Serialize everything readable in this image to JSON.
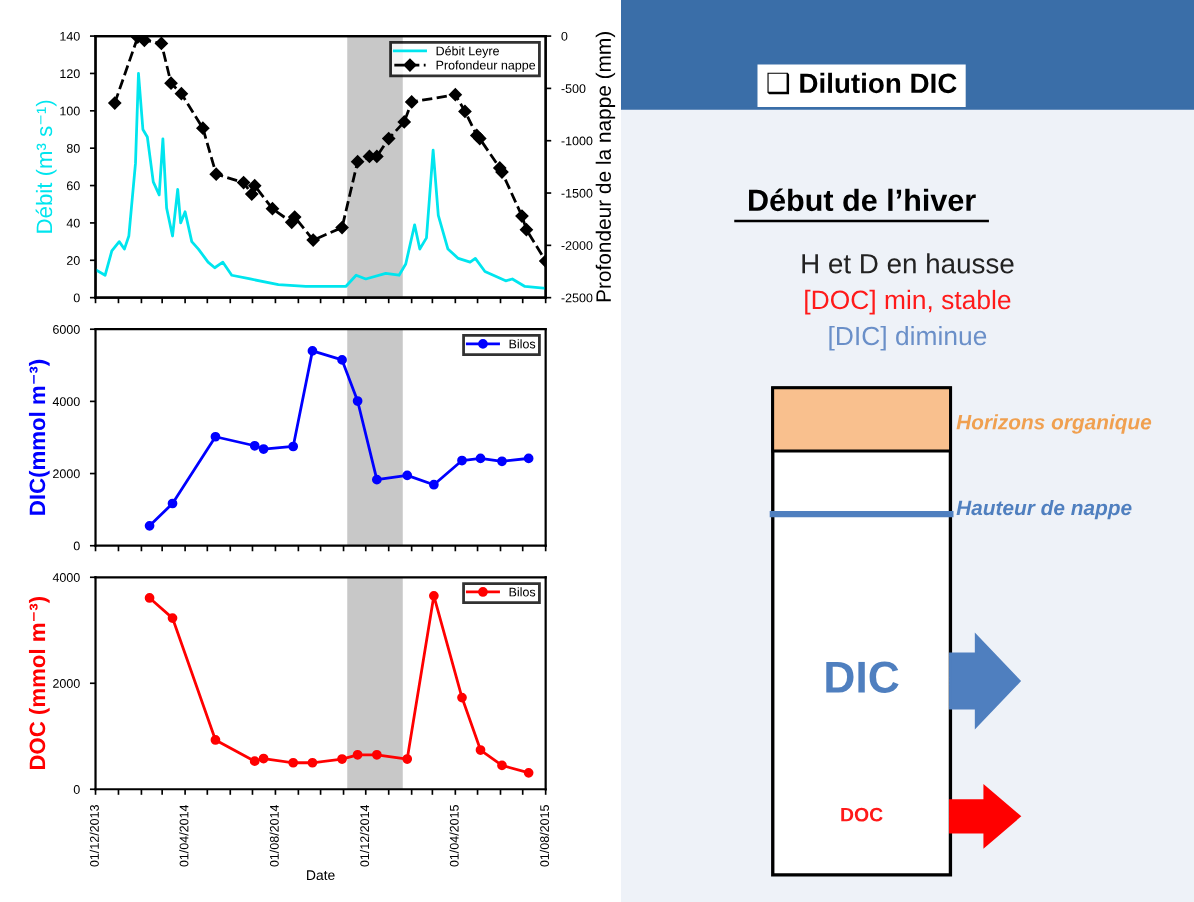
{
  "chart_data": [
    {
      "type": "line",
      "ylabel": "Débit (m³ s⁻¹)",
      "y2label": "Profondeur de la nappe (mm)",
      "xlim": [
        "2013-12-01",
        "2015-08-01"
      ],
      "xticks": [
        {
          "value": "2013-12-01",
          "label": null
        },
        {
          "value": "2014-01-01",
          "label": null
        },
        {
          "value": "2014-02-01",
          "label": null
        },
        {
          "value": "2014-03-01",
          "label": null
        },
        {
          "value": "2014-04-01",
          "label": null
        },
        {
          "value": "2014-05-01",
          "label": null
        },
        {
          "value": "2014-06-01",
          "label": null
        },
        {
          "value": "2014-07-01",
          "label": null
        },
        {
          "value": "2014-08-01",
          "label": null
        },
        {
          "value": "2014-09-01",
          "label": null
        },
        {
          "value": "2014-10-01",
          "label": null
        },
        {
          "value": "2014-11-01",
          "label": null
        },
        {
          "value": "2014-12-01",
          "label": null
        },
        {
          "value": "2015-01-01",
          "label": null
        },
        {
          "value": "2015-02-01",
          "label": null
        },
        {
          "value": "2015-03-01",
          "label": null
        },
        {
          "value": "2015-04-01",
          "label": null
        },
        {
          "value": "2015-05-01",
          "label": null
        },
        {
          "value": "2015-06-01",
          "label": null
        },
        {
          "value": "2015-07-01",
          "label": null
        },
        {
          "value": "2015-08-01",
          "label": null
        }
      ],
      "ylim": [
        0,
        140
      ],
      "yticks": [
        0,
        20,
        40,
        60,
        80,
        100,
        120,
        140
      ],
      "y2lim": [
        -2500,
        0
      ],
      "y2ticks": [
        -2500,
        -2000,
        -1500,
        -1000,
        -500,
        0
      ],
      "tick_labels": "y",
      "legend": "top right",
      "grid": false,
      "bands": [
        {
          "axis": "x",
          "from": "2014-11-06",
          "to": "2015-01-20",
          "color": "#c8c8c8"
        }
      ],
      "series": [
        {
          "name": "Débit Leyre",
          "color": "#00e5ee",
          "x": [
            "2013-12-01",
            "2013-12-14",
            "2013-12-23",
            "2014-01-02",
            "2014-01-09",
            "2014-01-15",
            "2014-01-24",
            "2014-01-28",
            "2014-02-03",
            "2014-02-09",
            "2014-02-17",
            "2014-02-25",
            "2014-03-02",
            "2014-03-07",
            "2014-03-15",
            "2014-03-22",
            "2014-03-26",
            "2014-04-01",
            "2014-04-10",
            "2014-04-19",
            "2014-05-02",
            "2014-05-11",
            "2014-05-22",
            "2014-06-03",
            "2014-06-28",
            "2014-08-05",
            "2014-09-11",
            "2014-11-04",
            "2014-11-18",
            "2014-12-01",
            "2014-12-28",
            "2015-01-15",
            "2015-01-24",
            "2015-02-05",
            "2015-02-12",
            "2015-02-21",
            "2015-03-02",
            "2015-03-09",
            "2015-03-22",
            "2015-04-05",
            "2015-04-21",
            "2015-04-28",
            "2015-05-11",
            "2015-06-08",
            "2015-06-17",
            "2015-07-04",
            "2015-08-01"
          ],
          "values": [
            15,
            12,
            25,
            30,
            26,
            33,
            72,
            120,
            90,
            86,
            62,
            55,
            85,
            48,
            33,
            58,
            40,
            46,
            30,
            26,
            19,
            16,
            19,
            12,
            10,
            7,
            6,
            6,
            12,
            10,
            13,
            12,
            18,
            39,
            26,
            32,
            79,
            44,
            26,
            21,
            19,
            21,
            14,
            9,
            10,
            6,
            5
          ]
        },
        {
          "name": "Profondeur nappe",
          "color": "#000000",
          "axis": "y2",
          "marker": "diamond",
          "line_style": "dashed",
          "x": [
            "2013-12-27",
            "2014-01-27",
            "2014-02-05",
            "2014-02-28",
            "2014-03-13",
            "2014-03-27",
            "2014-04-25",
            "2014-05-13",
            "2014-06-19",
            "2014-06-30",
            "2014-07-04",
            "2014-07-28",
            "2014-08-23",
            "2014-08-27",
            "2014-09-21",
            "2014-10-30",
            "2014-11-20",
            "2014-12-06",
            "2014-12-16",
            "2015-01-01",
            "2015-01-22",
            "2015-02-01",
            "2015-04-01",
            "2015-04-14",
            "2015-04-30",
            "2015-05-04",
            "2015-05-31",
            "2015-06-03",
            "2015-06-30",
            "2015-07-06",
            "2015-08-01"
          ],
          "values": [
            -640,
            -10,
            -40,
            -70,
            -450,
            -550,
            -880,
            -1320,
            -1400,
            -1510,
            -1430,
            -1650,
            -1780,
            -1730,
            -1950,
            -1830,
            -1200,
            -1150,
            -1150,
            -980,
            -820,
            -630,
            -560,
            -720,
            -950,
            -980,
            -1260,
            -1300,
            -1720,
            -1850,
            -2150
          ]
        }
      ]
    },
    {
      "type": "line",
      "ylabel": "DIC(mmol m⁻³)",
      "xlim": [
        "2013-12-01",
        "2015-08-01"
      ],
      "xticks": [
        {
          "value": "2013-12-01",
          "label": null
        },
        {
          "value": "2014-01-01",
          "label": null
        },
        {
          "value": "2014-02-01",
          "label": null
        },
        {
          "value": "2014-03-01",
          "label": null
        },
        {
          "value": "2014-04-01",
          "label": null
        },
        {
          "value": "2014-05-01",
          "label": null
        },
        {
          "value": "2014-06-01",
          "label": null
        },
        {
          "value": "2014-07-01",
          "label": null
        },
        {
          "value": "2014-08-01",
          "label": null
        },
        {
          "value": "2014-09-01",
          "label": null
        },
        {
          "value": "2014-10-01",
          "label": null
        },
        {
          "value": "2014-11-01",
          "label": null
        },
        {
          "value": "2014-12-01",
          "label": null
        },
        {
          "value": "2015-01-01",
          "label": null
        },
        {
          "value": "2015-02-01",
          "label": null
        },
        {
          "value": "2015-03-01",
          "label": null
        },
        {
          "value": "2015-04-01",
          "label": null
        },
        {
          "value": "2015-05-01",
          "label": null
        },
        {
          "value": "2015-06-01",
          "label": null
        },
        {
          "value": "2015-07-01",
          "label": null
        },
        {
          "value": "2015-08-01",
          "label": null
        }
      ],
      "ylim": [
        0,
        6000
      ],
      "yticks": [
        0,
        2000,
        4000,
        6000
      ],
      "tick_labels": "y",
      "legend": "top right",
      "grid": false,
      "bands": [
        {
          "axis": "x",
          "from": "2014-11-06",
          "to": "2015-01-20",
          "color": "#c8c8c8"
        }
      ],
      "series": [
        {
          "name": "Bilos",
          "color": "#0000ff",
          "marker": "circle",
          "x": [
            "2014-02-12",
            "2014-03-15",
            "2014-05-12",
            "2014-07-04",
            "2014-07-16",
            "2014-08-25",
            "2014-09-20",
            "2014-10-30",
            "2014-11-20",
            "2014-12-16",
            "2015-01-26",
            "2015-03-03",
            "2015-04-10",
            "2015-05-05",
            "2015-06-03",
            "2015-07-09"
          ],
          "values": [
            550,
            1170,
            3020,
            2770,
            2680,
            2750,
            5400,
            5150,
            4010,
            1830,
            1950,
            1690,
            2360,
            2420,
            2340,
            2420
          ]
        }
      ]
    },
    {
      "type": "line",
      "ylabel": "DOC (mmol m⁻³)",
      "xlabel": "Date",
      "xlim": [
        "2013-12-01",
        "2015-08-01"
      ],
      "xticks": [
        {
          "value": "2013-12-01",
          "label": "01/12/2013"
        },
        {
          "value": "2014-01-01",
          "label": null
        },
        {
          "value": "2014-02-01",
          "label": null
        },
        {
          "value": "2014-03-01",
          "label": null
        },
        {
          "value": "2014-04-01",
          "label": "01/04/2014"
        },
        {
          "value": "2014-05-01",
          "label": null
        },
        {
          "value": "2014-06-01",
          "label": null
        },
        {
          "value": "2014-07-01",
          "label": null
        },
        {
          "value": "2014-08-01",
          "label": "01/08/2014"
        },
        {
          "value": "2014-09-01",
          "label": null
        },
        {
          "value": "2014-10-01",
          "label": null
        },
        {
          "value": "2014-11-01",
          "label": null
        },
        {
          "value": "2014-12-01",
          "label": "01/12/2014"
        },
        {
          "value": "2015-01-01",
          "label": null
        },
        {
          "value": "2015-02-01",
          "label": null
        },
        {
          "value": "2015-03-01",
          "label": null
        },
        {
          "value": "2015-04-01",
          "label": "01/04/2015"
        },
        {
          "value": "2015-05-01",
          "label": null
        },
        {
          "value": "2015-06-01",
          "label": null
        },
        {
          "value": "2015-07-01",
          "label": null
        },
        {
          "value": "2015-08-01",
          "label": "01/08/2015"
        }
      ],
      "ylim": [
        0,
        4000
      ],
      "yticks": [
        0,
        2000,
        4000
      ],
      "legend": "top right",
      "grid": false,
      "bands": [
        {
          "axis": "x",
          "from": "2014-11-06",
          "to": "2015-01-20",
          "color": "#c8c8c8"
        }
      ],
      "series": [
        {
          "name": "Bilos",
          "color": "#ff0000",
          "marker": "circle",
          "x": [
            "2014-02-12",
            "2014-03-15",
            "2014-05-12",
            "2014-07-04",
            "2014-07-16",
            "2014-08-25",
            "2014-09-20",
            "2014-10-30",
            "2014-11-20",
            "2014-12-16",
            "2015-01-26",
            "2015-03-03",
            "2015-04-10",
            "2015-05-05",
            "2015-06-03",
            "2015-07-09"
          ],
          "values": [
            3610,
            3230,
            930,
            530,
            580,
            500,
            500,
            570,
            650,
            650,
            570,
            3650,
            1730,
            740,
            450,
            310
          ]
        }
      ]
    },
    {
      "type": "other",
      "title": "❑ Dilution DIC",
      "subtitle": "Début de l’hiver",
      "annotations": [
        "H et D en hausse",
        "[DOC] min, stable",
        "[DIC] diminue",
        "Horizons organique",
        "Hauteur de nappe",
        "DIC",
        "DOC"
      ]
    }
  ]
}
